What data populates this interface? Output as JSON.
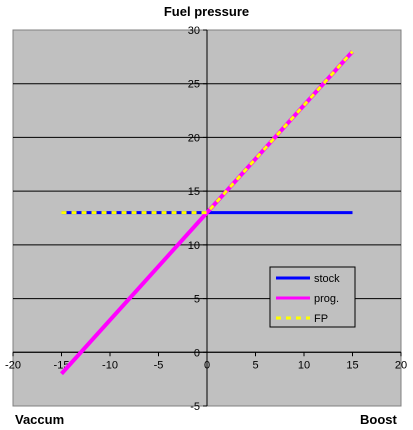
{
  "chart_data": {
    "type": "line",
    "title": "Fuel pressure",
    "xlabel_left": "Vaccum",
    "xlabel_right": "Boost",
    "xlim": [
      -20,
      20
    ],
    "ylim": [
      -5,
      30
    ],
    "xticks": [
      -20,
      -15,
      -10,
      -5,
      0,
      5,
      10,
      15,
      20
    ],
    "yticks": [
      -5,
      0,
      5,
      10,
      15,
      20,
      25,
      30
    ],
    "grid": "horizontal",
    "legend_position": "lower-right",
    "background": "#c0c0c0",
    "series": [
      {
        "name": "stock",
        "color": "#0000ff",
        "dash": "solid",
        "x": [
          -15,
          0,
          15
        ],
        "y": [
          13,
          13,
          13
        ]
      },
      {
        "name": "prog.",
        "color": "#ff00ff",
        "dash": "solid",
        "x": [
          -15,
          0,
          15
        ],
        "y": [
          -2,
          13,
          28
        ]
      },
      {
        "name": "FP",
        "color": "#ffff00",
        "dash": "dashed",
        "x": [
          -15,
          0,
          15
        ],
        "y": [
          13,
          13,
          28
        ]
      }
    ]
  }
}
